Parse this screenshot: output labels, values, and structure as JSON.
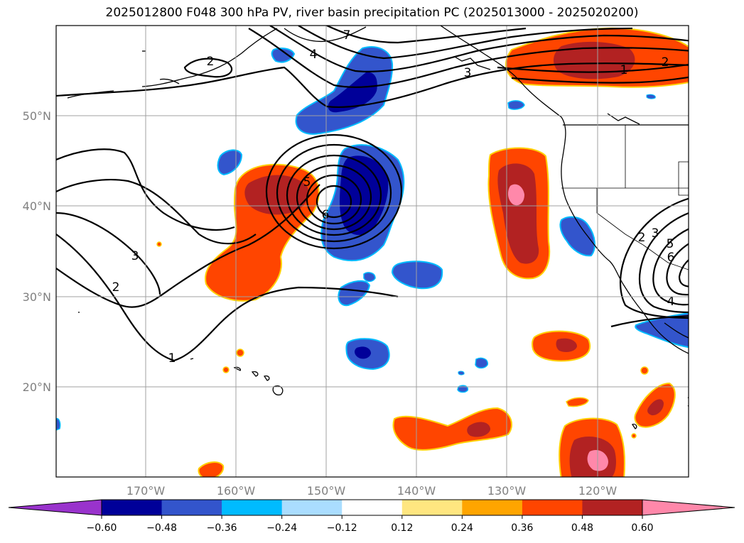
{
  "title": "2025012800 F048 300 hPa PV, river basin precipitation PC (2025013000 - 2025020200)",
  "map": {
    "lat_labels": [
      "50°N",
      "40°N",
      "30°N",
      "20°N"
    ],
    "lon_labels": [
      "170°W",
      "160°W",
      "150°W",
      "140°W",
      "130°W",
      "120°W"
    ],
    "contour_labels": [
      "1",
      "2",
      "3",
      "4",
      "5",
      "6",
      "7",
      "2",
      "3",
      "1",
      "2",
      "2",
      "3",
      "5",
      "6",
      "4"
    ]
  },
  "colorbar": {
    "ticks": [
      "−0.60",
      "−0.48",
      "−0.36",
      "−0.24",
      "−0.12",
      "0.12",
      "0.24",
      "0.36",
      "0.48",
      "0.60"
    ],
    "colors": [
      "#9933cc",
      "#000099",
      "#3355cc",
      "#00bbff",
      "#aaddff",
      "#ffffff",
      "#ffe680",
      "#ffa500",
      "#ff4500",
      "#b22222",
      "#ff88aa"
    ]
  }
}
